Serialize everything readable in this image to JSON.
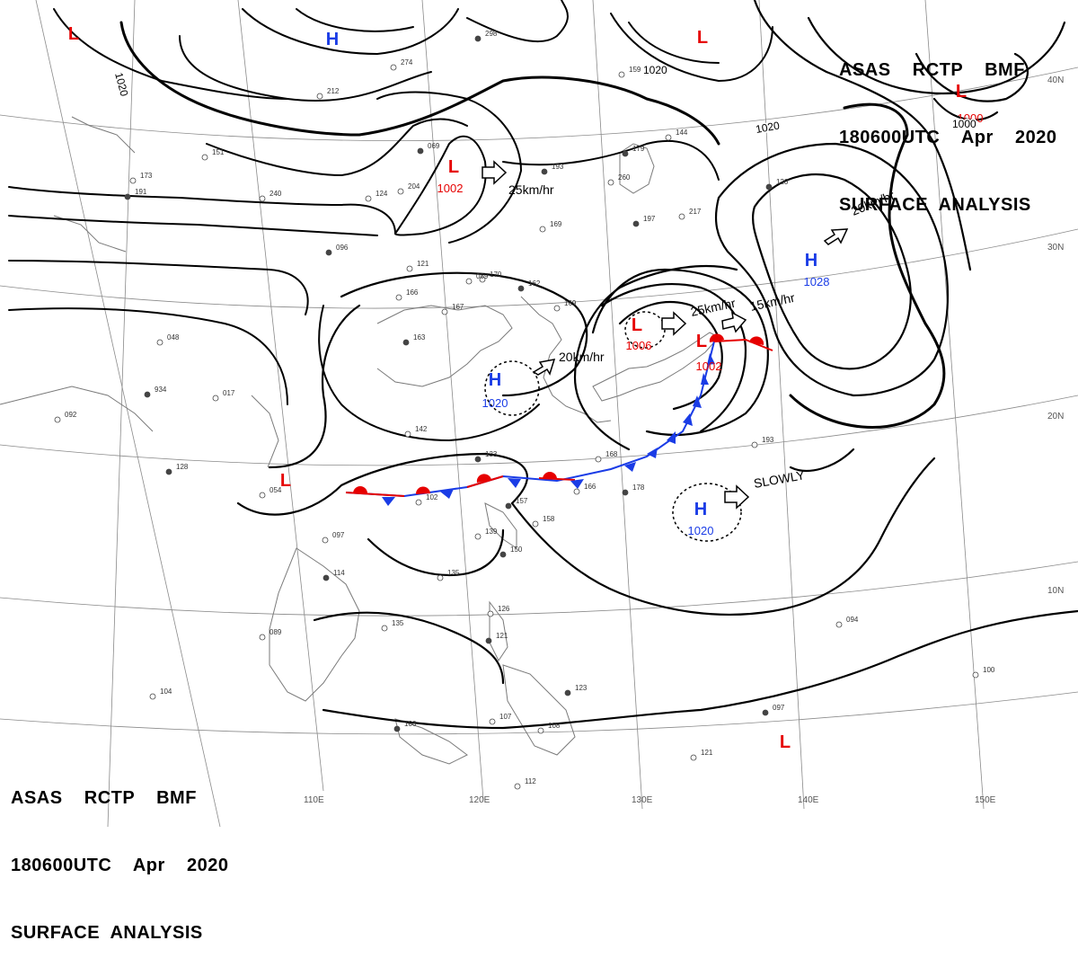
{
  "header": {
    "line1": "ASAS    RCTP    BMF",
    "line2": "180600UTC    Apr    2020",
    "line3": "SURFACE  ANALYSIS"
  },
  "colors": {
    "low": "#e60000",
    "high": "#1a3ce6",
    "cold_front": "#1a3ce6",
    "warm_front": "#e60000",
    "isobar": "#000000",
    "grid": "#888888",
    "coast": "#777777"
  },
  "longitude_labels": [
    "110E",
    "120E",
    "130E",
    "140E",
    "150E"
  ],
  "latitude_labels": [
    "40N",
    "30N",
    "20N",
    "10N"
  ],
  "isobar_labels": [
    "1020",
    "1020",
    "1020",
    "1000"
  ],
  "pressure_systems": [
    {
      "type": "L",
      "value": ""
    },
    {
      "type": "H",
      "value": ""
    },
    {
      "type": "L",
      "value": ""
    },
    {
      "type": "L",
      "value": "1000"
    },
    {
      "type": "L",
      "value": "1002"
    },
    {
      "type": "H",
      "value": "1028"
    },
    {
      "type": "L",
      "value": "1006"
    },
    {
      "type": "L",
      "value": "1002"
    },
    {
      "type": "H",
      "value": "1020"
    },
    {
      "type": "L",
      "value": ""
    },
    {
      "type": "H",
      "value": "1020"
    },
    {
      "type": "L",
      "value": ""
    }
  ],
  "motions": [
    "25km/hr",
    "20km/hr",
    "25km/hr",
    "15km/hr",
    "20km/hr",
    "SLOWLY"
  ],
  "station_values": [
    "298",
    "274",
    "212",
    "069",
    "240",
    "124",
    "096",
    "121",
    "166",
    "163",
    "167",
    "170",
    "162",
    "169",
    "048",
    "934",
    "017",
    "092",
    "128",
    "135",
    "142",
    "133",
    "102",
    "054",
    "157",
    "158",
    "139",
    "150",
    "166",
    "168",
    "178",
    "193",
    "097",
    "114",
    "135",
    "126",
    "121",
    "089",
    "104",
    "106",
    "107",
    "108",
    "123",
    "112",
    "121",
    "097",
    "094",
    "100",
    "120",
    "089",
    "260",
    "179",
    "144",
    "159",
    "197",
    "217",
    "169",
    "193",
    "151",
    "173",
    "191",
    "204"
  ]
}
